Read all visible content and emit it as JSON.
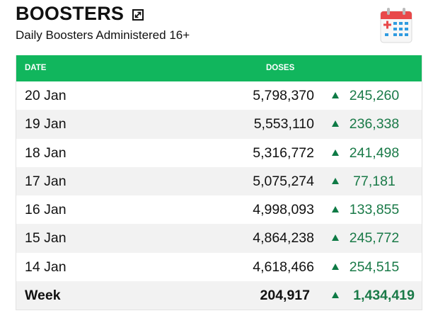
{
  "header": {
    "title": "BOOSTERS",
    "subtitle": "Daily Boosters Administered 16+"
  },
  "icons": {
    "expand": "expand-icon",
    "calendar": "calendar-icon",
    "increase": "triangle-up-icon"
  },
  "colors": {
    "header_bg": "#11b65d",
    "increase": "#1a7a48",
    "calendar_red": "#e8494a",
    "calendar_blue": "#2f9be0"
  },
  "table": {
    "columns": {
      "date": "DATE",
      "doses": "DOSES"
    },
    "rows": [
      {
        "date": "20 Jan",
        "doses": "5,798,370",
        "change": "245,260"
      },
      {
        "date": "19 Jan",
        "doses": "5,553,110",
        "change": "236,338"
      },
      {
        "date": "18 Jan",
        "doses": "5,316,772",
        "change": "241,498"
      },
      {
        "date": "17 Jan",
        "doses": "5,075,274",
        "change": "77,181"
      },
      {
        "date": "16 Jan",
        "doses": "4,998,093",
        "change": "133,855"
      },
      {
        "date": "15 Jan",
        "doses": "4,864,238",
        "change": "245,772"
      },
      {
        "date": "14 Jan",
        "doses": "4,618,466",
        "change": "254,515"
      }
    ],
    "summary": {
      "label": "Week",
      "doses": "204,917",
      "change": "1,434,419"
    }
  }
}
